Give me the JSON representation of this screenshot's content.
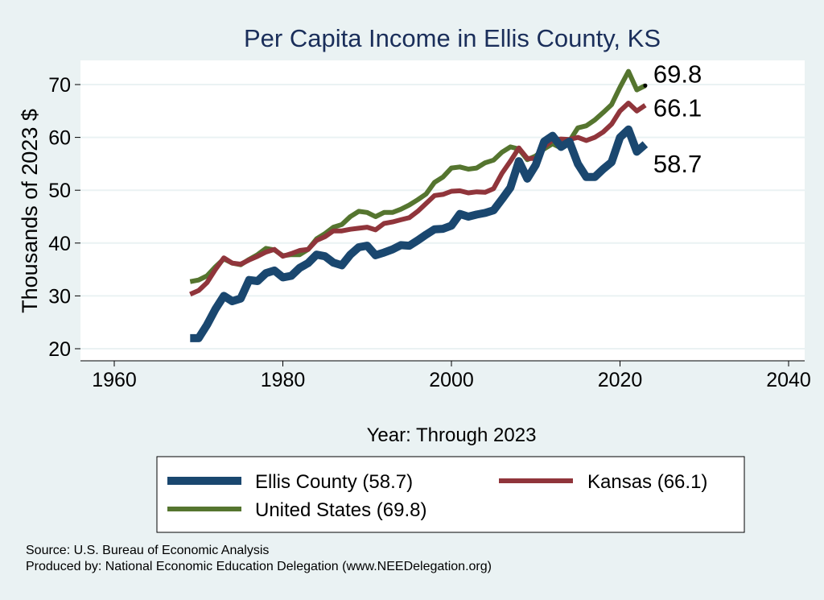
{
  "chart_data": {
    "type": "line",
    "title": "Per Capita Income in Ellis County, KS",
    "xlabel": "Year: Through 2023",
    "ylabel": "Thousands of 2023 $",
    "xlim": [
      1960,
      2040
    ],
    "ylim": [
      20,
      72
    ],
    "xticks": [
      1960,
      1980,
      2000,
      2020,
      2040
    ],
    "yticks": [
      20,
      30,
      40,
      50,
      60,
      70
    ],
    "grid": true,
    "legend_position": "bottom",
    "x": [
      1969,
      1970,
      1971,
      1972,
      1973,
      1974,
      1975,
      1976,
      1977,
      1978,
      1979,
      1980,
      1981,
      1982,
      1983,
      1984,
      1985,
      1986,
      1987,
      1988,
      1989,
      1990,
      1991,
      1992,
      1993,
      1994,
      1995,
      1996,
      1997,
      1998,
      1999,
      2000,
      2001,
      2002,
      2003,
      2004,
      2005,
      2006,
      2007,
      2008,
      2009,
      2010,
      2011,
      2012,
      2013,
      2014,
      2015,
      2016,
      2017,
      2018,
      2019,
      2020,
      2021,
      2022,
      2023
    ],
    "series": [
      {
        "name": "Ellis County (58.7)",
        "color": "#1a476f",
        "end_label": "58.7",
        "values": [
          22,
          22,
          24.5,
          27.5,
          30,
          29,
          29.5,
          33,
          32.8,
          34.3,
          34.8,
          33.5,
          33.8,
          35.3,
          36.2,
          37.8,
          37.5,
          36.3,
          35.8,
          37.8,
          39.2,
          39.5,
          37.7,
          38.2,
          38.8,
          39.6,
          39.5,
          40.5,
          41.6,
          42.6,
          42.7,
          43.3,
          45.5,
          45,
          45.4,
          45.7,
          46.2,
          48.3,
          50.5,
          55.5,
          52.2,
          54.8,
          59.2,
          60.3,
          58.2,
          59.2,
          55,
          52.5,
          52.5,
          54,
          55.3,
          60,
          61.5,
          57.3,
          58.7
        ]
      },
      {
        "name": "Kansas (66.1)",
        "color": "#90353b",
        "end_label": "66.1",
        "values": [
          30.3,
          31,
          32.5,
          35,
          37.2,
          36.2,
          36,
          36.8,
          37.5,
          38.3,
          38.8,
          37.5,
          38,
          38.6,
          38.8,
          40.5,
          41.2,
          42.3,
          42.3,
          42.6,
          42.8,
          43,
          42.5,
          43.7,
          44,
          44.4,
          44.8,
          46,
          47.5,
          49,
          49.2,
          49.8,
          49.9,
          49.5,
          49.7,
          49.6,
          50.3,
          53.2,
          55.5,
          58,
          56,
          56,
          58.2,
          59.5,
          59.7,
          59.6,
          60,
          59.4,
          60,
          61,
          62.5,
          65,
          66.5,
          65,
          66.1
        ]
      },
      {
        "name": "United States (69.8)",
        "color": "#55752f",
        "end_label": "69.8",
        "values": [
          32.7,
          33,
          33.8,
          35.5,
          37,
          36.2,
          35.9,
          36.9,
          37.8,
          39,
          38.7,
          37.6,
          37.8,
          37.8,
          38.8,
          40.8,
          41.8,
          43,
          43.5,
          45,
          46,
          45.8,
          45,
          45.8,
          45.8,
          46.4,
          47.2,
          48.2,
          49.3,
          51.5,
          52.5,
          54.2,
          54.4,
          54,
          54.2,
          55.2,
          55.7,
          57.2,
          58.2,
          57.8,
          55.8,
          56.5,
          57.8,
          58.8,
          58,
          59.3,
          61.8,
          62.2,
          63.3,
          64.7,
          66.2,
          69.5,
          72.5,
          69,
          69.8
        ]
      }
    ]
  },
  "notes": {
    "source": "Source: U.S. Bureau of Economic Analysis",
    "produced_by": "Produced by: National Economic Education Delegation (www.NEEDelegation.org)"
  }
}
